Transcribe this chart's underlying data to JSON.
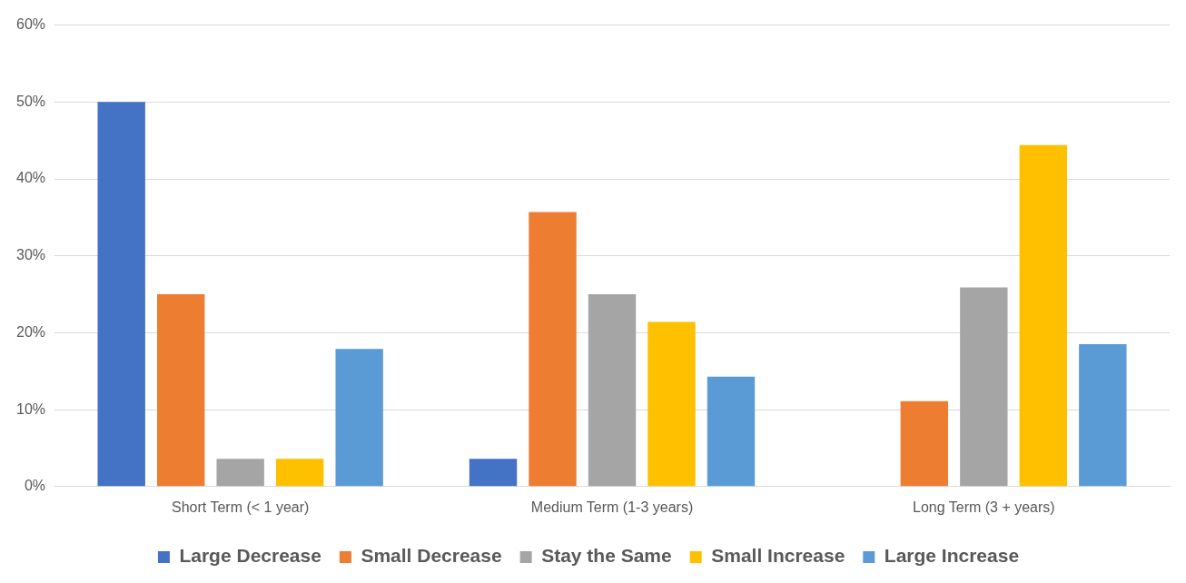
{
  "chart_data": {
    "type": "bar",
    "categories": [
      "Short Term (< 1 year)",
      "Medium Term (1-3 years)",
      "Long Term (3 + years)"
    ],
    "series": [
      {
        "name": "Large Decrease",
        "color": "#4472c4",
        "values": [
          50,
          3.6,
          0
        ]
      },
      {
        "name": "Small Decrease",
        "color": "#ed7d31",
        "values": [
          25,
          35.7,
          11.1
        ]
      },
      {
        "name": "Stay the Same",
        "color": "#a5a5a5",
        "values": [
          3.6,
          25,
          25.9
        ]
      },
      {
        "name": "Small Increase",
        "color": "#ffc000",
        "values": [
          3.6,
          21.4,
          44.4
        ]
      },
      {
        "name": "Large Increase",
        "color": "#5b9bd5",
        "values": [
          17.9,
          14.3,
          18.5
        ]
      }
    ],
    "ylim": [
      0,
      60
    ],
    "yticks": [
      {
        "value": 0,
        "label": "0%"
      },
      {
        "value": 10,
        "label": "10%"
      },
      {
        "value": 20,
        "label": "20%"
      },
      {
        "value": 30,
        "label": "30%"
      },
      {
        "value": 40,
        "label": "40%"
      },
      {
        "value": 50,
        "label": "50%"
      },
      {
        "value": 60,
        "label": "60%"
      }
    ],
    "grid": "y",
    "legend": "bottom"
  }
}
